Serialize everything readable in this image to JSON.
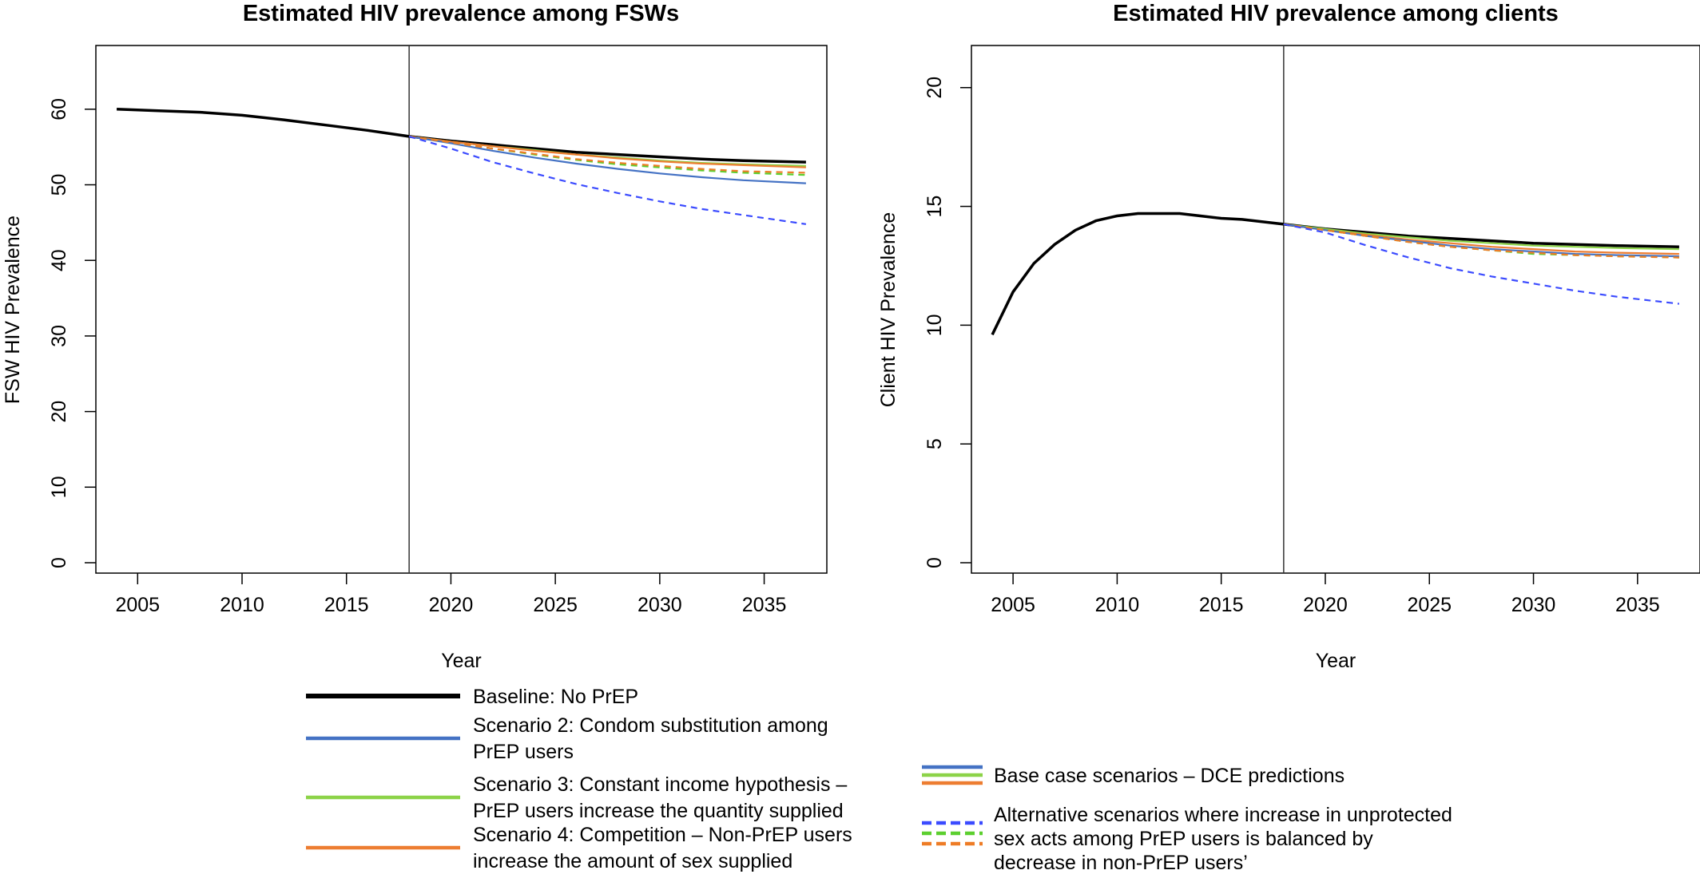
{
  "colors": {
    "baseline": "#000000",
    "scenario_2": "#4472c4",
    "scenario_3": "#8cd348",
    "scenario_4": "#ed7d31",
    "alt_blue": "#3b4bff",
    "alt_green": "#5ccf2f",
    "alt_orange": "#ee7c26",
    "axis": "#000000"
  },
  "legend_left": {
    "items": [
      {
        "key": "baseline",
        "lines": [
          "Baseline: No PrEP"
        ]
      },
      {
        "key": "scenario_2",
        "lines": [
          "Scenario 2: Condom substitution among",
          "PrEP users"
        ]
      },
      {
        "key": "scenario_3",
        "lines": [
          "Scenario 3: Constant income hypothesis –",
          "PrEP users increase the quantity supplied"
        ]
      },
      {
        "key": "scenario_4",
        "lines": [
          "Scenario 4: Competition – Non-PrEP users",
          "increase the amount of sex supplied"
        ]
      }
    ]
  },
  "legend_right": {
    "items": [
      {
        "style": "solid",
        "lines": [
          "Base case scenarios – DCE predictions"
        ]
      },
      {
        "style": "dashed",
        "lines": [
          "Alternative scenarios where increase in unprotected",
          "sex acts among PrEP users is balanced by",
          "decrease in non-PrEP users’"
        ]
      }
    ]
  },
  "chart_data": [
    {
      "type": "line",
      "title": "Estimated HIV prevalence among FSWs",
      "xlabel": "Year",
      "ylabel": "FSW HIV Prevalence",
      "xlim": [
        2003,
        2038
      ],
      "ylim": [
        0,
        66
      ],
      "xticks": [
        2005,
        2010,
        2015,
        2020,
        2025,
        2030,
        2035
      ],
      "yticks": [
        0,
        10,
        20,
        30,
        40,
        50,
        60
      ],
      "vline_x": 2018,
      "grid": false,
      "series": [
        {
          "key": "baseline",
          "style": "solid",
          "x": [
            2004,
            2006,
            2008,
            2010,
            2012,
            2014,
            2016,
            2018,
            2020,
            2022,
            2024,
            2026,
            2028,
            2030,
            2032,
            2034,
            2037
          ],
          "y": [
            60.0,
            59.8,
            59.6,
            59.2,
            58.6,
            57.9,
            57.2,
            56.4,
            55.8,
            55.3,
            54.8,
            54.3,
            54.0,
            53.7,
            53.4,
            53.2,
            53.0
          ]
        },
        {
          "key": "scenario_3",
          "style": "solid",
          "x": [
            2018,
            2020,
            2022,
            2024,
            2026,
            2028,
            2030,
            2032,
            2034,
            2037
          ],
          "y": [
            56.4,
            55.7,
            55.1,
            54.6,
            54.0,
            53.6,
            53.2,
            52.9,
            52.7,
            52.5
          ]
        },
        {
          "key": "scenario_4",
          "style": "solid",
          "x": [
            2018,
            2020,
            2022,
            2024,
            2026,
            2028,
            2030,
            2032,
            2034,
            2037
          ],
          "y": [
            56.4,
            55.7,
            55.1,
            54.5,
            54.0,
            53.5,
            53.1,
            52.8,
            52.6,
            52.3
          ]
        },
        {
          "key": "scenario_2",
          "style": "solid",
          "x": [
            2018,
            2020,
            2022,
            2024,
            2026,
            2028,
            2030,
            2032,
            2034,
            2037
          ],
          "y": [
            56.4,
            55.5,
            54.5,
            53.6,
            52.8,
            52.1,
            51.5,
            51.0,
            50.6,
            50.2
          ]
        },
        {
          "key": "alt_green",
          "style": "dashed",
          "x": [
            2018,
            2020,
            2022,
            2024,
            2026,
            2028,
            2030,
            2032,
            2034,
            2037
          ],
          "y": [
            56.4,
            55.6,
            54.8,
            54.0,
            53.3,
            52.7,
            52.3,
            51.9,
            51.6,
            51.3
          ]
        },
        {
          "key": "alt_orange",
          "style": "dashed",
          "x": [
            2018,
            2020,
            2022,
            2024,
            2026,
            2028,
            2030,
            2032,
            2034,
            2037
          ],
          "y": [
            56.4,
            55.6,
            54.8,
            54.1,
            53.4,
            52.9,
            52.5,
            52.1,
            51.8,
            51.6
          ]
        },
        {
          "key": "alt_blue",
          "style": "dashed",
          "x": [
            2018,
            2020,
            2022,
            2024,
            2026,
            2028,
            2030,
            2032,
            2034,
            2037
          ],
          "y": [
            56.4,
            54.8,
            53.0,
            51.5,
            50.1,
            48.9,
            47.8,
            46.8,
            46.0,
            44.8
          ]
        }
      ]
    },
    {
      "type": "line",
      "title": "Estimated HIV prevalence among clients",
      "xlabel": "Year",
      "ylabel": "Client HIV Prevalence",
      "xlim": [
        2003,
        2038
      ],
      "ylim": [
        0,
        21
      ],
      "xticks": [
        2005,
        2010,
        2015,
        2020,
        2025,
        2030,
        2035
      ],
      "yticks": [
        0,
        5,
        10,
        15,
        20
      ],
      "vline_x": 2018,
      "grid": false,
      "series": [
        {
          "key": "baseline",
          "style": "solid",
          "x": [
            2004,
            2005,
            2006,
            2007,
            2008,
            2009,
            2010,
            2011,
            2012,
            2013,
            2014,
            2015,
            2016,
            2017,
            2018,
            2020,
            2022,
            2024,
            2026,
            2028,
            2030,
            2032,
            2034,
            2037
          ],
          "y": [
            9.6,
            11.4,
            12.6,
            13.4,
            14.0,
            14.4,
            14.6,
            14.7,
            14.7,
            14.7,
            14.6,
            14.5,
            14.45,
            14.35,
            14.25,
            14.05,
            13.9,
            13.75,
            13.65,
            13.55,
            13.45,
            13.4,
            13.35,
            13.3
          ]
        },
        {
          "key": "scenario_3",
          "style": "solid",
          "x": [
            2018,
            2020,
            2022,
            2024,
            2026,
            2028,
            2030,
            2032,
            2034,
            2037
          ],
          "y": [
            14.25,
            14.05,
            13.85,
            13.7,
            13.55,
            13.45,
            13.35,
            13.3,
            13.25,
            13.2
          ]
        },
        {
          "key": "scenario_4",
          "style": "solid",
          "x": [
            2018,
            2020,
            2022,
            2024,
            2026,
            2028,
            2030,
            2032,
            2034,
            2037
          ],
          "y": [
            14.25,
            14.0,
            13.8,
            13.6,
            13.45,
            13.3,
            13.2,
            13.1,
            13.05,
            13.0
          ]
        },
        {
          "key": "scenario_2",
          "style": "solid",
          "x": [
            2018,
            2020,
            2022,
            2024,
            2026,
            2028,
            2030,
            2032,
            2034,
            2037
          ],
          "y": [
            14.25,
            14.0,
            13.75,
            13.55,
            13.35,
            13.2,
            13.1,
            13.0,
            12.95,
            12.9
          ]
        },
        {
          "key": "alt_green",
          "style": "dashed",
          "x": [
            2018,
            2020,
            2022,
            2024,
            2026,
            2028,
            2030,
            2032,
            2034,
            2037
          ],
          "y": [
            14.25,
            14.0,
            13.75,
            13.5,
            13.3,
            13.15,
            13.0,
            12.95,
            12.9,
            12.85
          ]
        },
        {
          "key": "alt_orange",
          "style": "dashed",
          "x": [
            2018,
            2020,
            2022,
            2024,
            2026,
            2028,
            2030,
            2032,
            2034,
            2037
          ],
          "y": [
            14.25,
            14.0,
            13.75,
            13.5,
            13.3,
            13.15,
            13.05,
            12.95,
            12.9,
            12.85
          ]
        },
        {
          "key": "alt_blue",
          "style": "dashed",
          "x": [
            2018,
            2020,
            2022,
            2024,
            2026,
            2028,
            2030,
            2032,
            2034,
            2037
          ],
          "y": [
            14.25,
            13.9,
            13.35,
            12.85,
            12.4,
            12.05,
            11.75,
            11.45,
            11.2,
            10.9
          ]
        }
      ]
    }
  ]
}
